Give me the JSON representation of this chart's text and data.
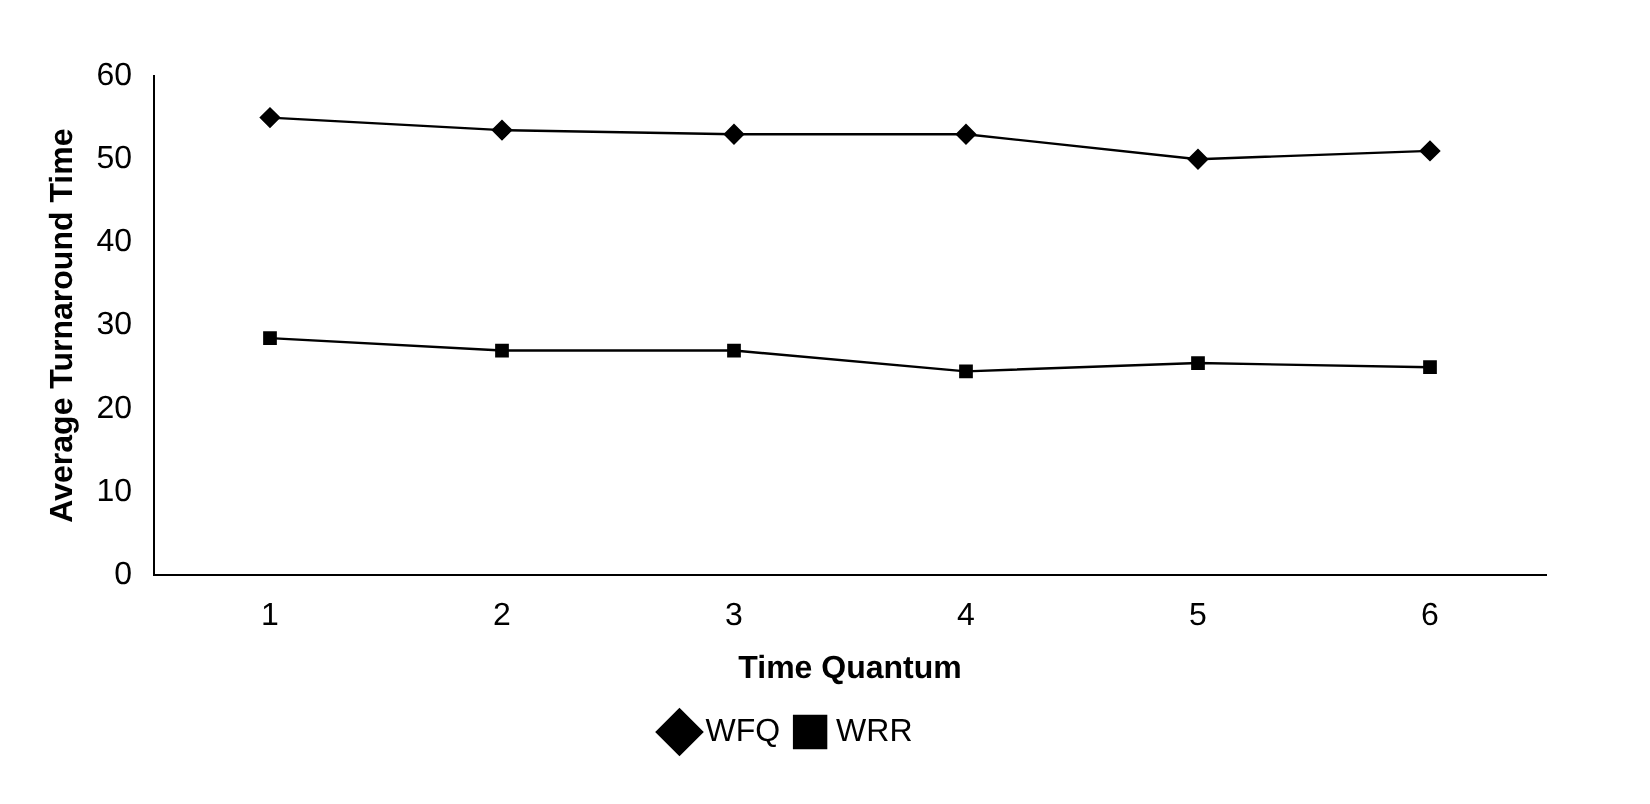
{
  "chart_data": {
    "type": "line",
    "xlabel": "Time Quantum",
    "ylabel": "Average Turnaround Time",
    "categories": [
      "1",
      "2",
      "3",
      "4",
      "5",
      "6"
    ],
    "series": [
      {
        "name": "WFQ",
        "color": "#000000",
        "marker": "diamond",
        "values": [
          55,
          53.5,
          53,
          53,
          50,
          51
        ]
      },
      {
        "name": "WRR",
        "color": "#000000",
        "marker": "square",
        "values": [
          28.5,
          27,
          27,
          24.5,
          25.5,
          25
        ]
      }
    ],
    "ylim": [
      0,
      60
    ],
    "yticks": [
      0,
      10,
      20,
      30,
      40,
      50,
      60
    ],
    "legend": "bottom",
    "line_style": "solid"
  }
}
